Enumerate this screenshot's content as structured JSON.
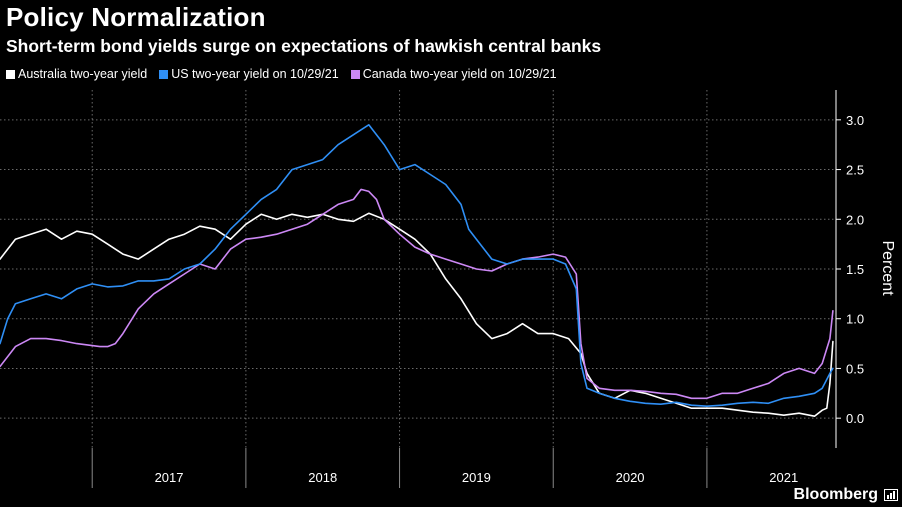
{
  "header": {
    "title": "Policy Normalization",
    "subtitle": "Short-term bond yields surge on expectations of hawkish central banks"
  },
  "brand": "Bloomberg",
  "chart_data": {
    "type": "line",
    "ylabel": "Percent",
    "ylim": [
      -0.3,
      3.3
    ],
    "xlim": [
      2016.4,
      2021.84
    ],
    "y_ticks": [
      "0.0",
      "0.5",
      "1.0",
      "1.5",
      "2.0",
      "2.5",
      "3.0"
    ],
    "x_year_labels": [
      "2017",
      "2018",
      "2019",
      "2020",
      "2021"
    ],
    "grid": true,
    "legend_position": "top-left",
    "series": [
      {
        "name": "Australia two-year yield",
        "color": "#ffffff",
        "points": [
          [
            2016.4,
            1.6
          ],
          [
            2016.5,
            1.8
          ],
          [
            2016.6,
            1.85
          ],
          [
            2016.7,
            1.9
          ],
          [
            2016.8,
            1.8
          ],
          [
            2016.9,
            1.88
          ],
          [
            2017.0,
            1.85
          ],
          [
            2017.1,
            1.75
          ],
          [
            2017.2,
            1.65
          ],
          [
            2017.3,
            1.6
          ],
          [
            2017.4,
            1.7
          ],
          [
            2017.5,
            1.8
          ],
          [
            2017.6,
            1.85
          ],
          [
            2017.7,
            1.93
          ],
          [
            2017.8,
            1.9
          ],
          [
            2017.9,
            1.8
          ],
          [
            2018.0,
            1.95
          ],
          [
            2018.1,
            2.05
          ],
          [
            2018.2,
            2.0
          ],
          [
            2018.3,
            2.05
          ],
          [
            2018.4,
            2.02
          ],
          [
            2018.5,
            2.05
          ],
          [
            2018.6,
            2.0
          ],
          [
            2018.7,
            1.98
          ],
          [
            2018.8,
            2.06
          ],
          [
            2018.9,
            2.0
          ],
          [
            2019.0,
            1.9
          ],
          [
            2019.1,
            1.8
          ],
          [
            2019.2,
            1.65
          ],
          [
            2019.3,
            1.4
          ],
          [
            2019.4,
            1.2
          ],
          [
            2019.5,
            0.95
          ],
          [
            2019.6,
            0.8
          ],
          [
            2019.7,
            0.85
          ],
          [
            2019.8,
            0.95
          ],
          [
            2019.9,
            0.85
          ],
          [
            2020.0,
            0.85
          ],
          [
            2020.1,
            0.8
          ],
          [
            2020.18,
            0.65
          ],
          [
            2020.22,
            0.45
          ],
          [
            2020.3,
            0.25
          ],
          [
            2020.4,
            0.2
          ],
          [
            2020.5,
            0.28
          ],
          [
            2020.6,
            0.25
          ],
          [
            2020.7,
            0.2
          ],
          [
            2020.8,
            0.15
          ],
          [
            2020.9,
            0.1
          ],
          [
            2021.0,
            0.1
          ],
          [
            2021.1,
            0.1
          ],
          [
            2021.2,
            0.08
          ],
          [
            2021.3,
            0.06
          ],
          [
            2021.4,
            0.05
          ],
          [
            2021.5,
            0.03
          ],
          [
            2021.6,
            0.05
          ],
          [
            2021.7,
            0.02
          ],
          [
            2021.75,
            0.08
          ],
          [
            2021.78,
            0.1
          ],
          [
            2021.8,
            0.35
          ],
          [
            2021.82,
            0.77
          ]
        ]
      },
      {
        "name": "US two-year yield on 10/29/21",
        "color": "#2f8ff5",
        "points": [
          [
            2016.4,
            0.75
          ],
          [
            2016.45,
            1.0
          ],
          [
            2016.5,
            1.15
          ],
          [
            2016.6,
            1.2
          ],
          [
            2016.7,
            1.25
          ],
          [
            2016.8,
            1.2
          ],
          [
            2016.9,
            1.3
          ],
          [
            2017.0,
            1.35
          ],
          [
            2017.1,
            1.32
          ],
          [
            2017.2,
            1.33
          ],
          [
            2017.3,
            1.38
          ],
          [
            2017.4,
            1.38
          ],
          [
            2017.5,
            1.4
          ],
          [
            2017.6,
            1.5
          ],
          [
            2017.7,
            1.55
          ],
          [
            2017.8,
            1.7
          ],
          [
            2017.9,
            1.9
          ],
          [
            2018.0,
            2.05
          ],
          [
            2018.1,
            2.2
          ],
          [
            2018.2,
            2.3
          ],
          [
            2018.3,
            2.5
          ],
          [
            2018.4,
            2.55
          ],
          [
            2018.5,
            2.6
          ],
          [
            2018.6,
            2.75
          ],
          [
            2018.7,
            2.85
          ],
          [
            2018.8,
            2.95
          ],
          [
            2018.85,
            2.85
          ],
          [
            2018.9,
            2.75
          ],
          [
            2019.0,
            2.5
          ],
          [
            2019.1,
            2.55
          ],
          [
            2019.2,
            2.45
          ],
          [
            2019.3,
            2.35
          ],
          [
            2019.4,
            2.15
          ],
          [
            2019.45,
            1.9
          ],
          [
            2019.5,
            1.8
          ],
          [
            2019.6,
            1.6
          ],
          [
            2019.7,
            1.55
          ],
          [
            2019.8,
            1.6
          ],
          [
            2019.9,
            1.6
          ],
          [
            2020.0,
            1.6
          ],
          [
            2020.08,
            1.55
          ],
          [
            2020.15,
            1.3
          ],
          [
            2020.18,
            0.55
          ],
          [
            2020.22,
            0.3
          ],
          [
            2020.3,
            0.25
          ],
          [
            2020.4,
            0.2
          ],
          [
            2020.5,
            0.17
          ],
          [
            2020.6,
            0.15
          ],
          [
            2020.7,
            0.14
          ],
          [
            2020.8,
            0.16
          ],
          [
            2020.9,
            0.13
          ],
          [
            2021.0,
            0.12
          ],
          [
            2021.1,
            0.13
          ],
          [
            2021.2,
            0.15
          ],
          [
            2021.3,
            0.16
          ],
          [
            2021.4,
            0.15
          ],
          [
            2021.5,
            0.2
          ],
          [
            2021.6,
            0.22
          ],
          [
            2021.7,
            0.25
          ],
          [
            2021.75,
            0.3
          ],
          [
            2021.8,
            0.45
          ],
          [
            2021.82,
            0.5
          ]
        ]
      },
      {
        "name": "Canada two-year yield on 10/29/21",
        "color": "#cc88f5",
        "points": [
          [
            2016.4,
            0.52
          ],
          [
            2016.5,
            0.72
          ],
          [
            2016.6,
            0.8
          ],
          [
            2016.7,
            0.8
          ],
          [
            2016.8,
            0.78
          ],
          [
            2016.9,
            0.75
          ],
          [
            2017.0,
            0.73
          ],
          [
            2017.05,
            0.72
          ],
          [
            2017.1,
            0.72
          ],
          [
            2017.15,
            0.75
          ],
          [
            2017.2,
            0.85
          ],
          [
            2017.3,
            1.1
          ],
          [
            2017.4,
            1.25
          ],
          [
            2017.5,
            1.35
          ],
          [
            2017.6,
            1.45
          ],
          [
            2017.7,
            1.55
          ],
          [
            2017.8,
            1.5
          ],
          [
            2017.9,
            1.7
          ],
          [
            2018.0,
            1.8
          ],
          [
            2018.1,
            1.82
          ],
          [
            2018.2,
            1.85
          ],
          [
            2018.3,
            1.9
          ],
          [
            2018.4,
            1.95
          ],
          [
            2018.5,
            2.05
          ],
          [
            2018.6,
            2.15
          ],
          [
            2018.7,
            2.2
          ],
          [
            2018.75,
            2.3
          ],
          [
            2018.8,
            2.28
          ],
          [
            2018.85,
            2.2
          ],
          [
            2018.9,
            2.0
          ],
          [
            2019.0,
            1.85
          ],
          [
            2019.1,
            1.72
          ],
          [
            2019.2,
            1.65
          ],
          [
            2019.3,
            1.6
          ],
          [
            2019.4,
            1.55
          ],
          [
            2019.5,
            1.5
          ],
          [
            2019.6,
            1.48
          ],
          [
            2019.7,
            1.55
          ],
          [
            2019.8,
            1.6
          ],
          [
            2019.9,
            1.62
          ],
          [
            2020.0,
            1.65
          ],
          [
            2020.08,
            1.62
          ],
          [
            2020.15,
            1.45
          ],
          [
            2020.18,
            0.75
          ],
          [
            2020.22,
            0.4
          ],
          [
            2020.3,
            0.3
          ],
          [
            2020.4,
            0.28
          ],
          [
            2020.5,
            0.28
          ],
          [
            2020.6,
            0.27
          ],
          [
            2020.7,
            0.25
          ],
          [
            2020.8,
            0.24
          ],
          [
            2020.9,
            0.2
          ],
          [
            2021.0,
            0.2
          ],
          [
            2021.1,
            0.25
          ],
          [
            2021.2,
            0.25
          ],
          [
            2021.3,
            0.3
          ],
          [
            2021.4,
            0.35
          ],
          [
            2021.5,
            0.45
          ],
          [
            2021.6,
            0.5
          ],
          [
            2021.7,
            0.45
          ],
          [
            2021.75,
            0.55
          ],
          [
            2021.8,
            0.8
          ],
          [
            2021.82,
            1.08
          ]
        ]
      }
    ]
  }
}
